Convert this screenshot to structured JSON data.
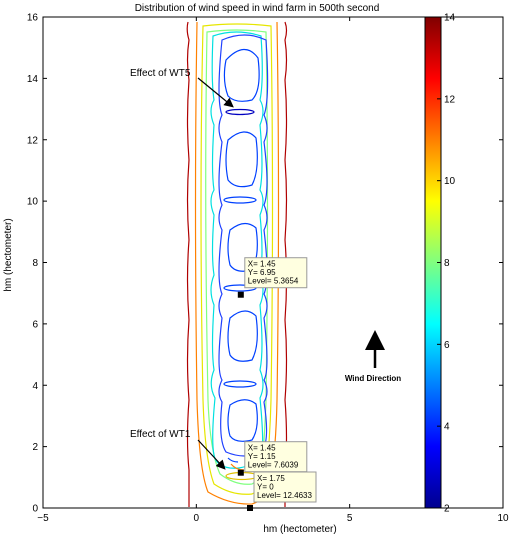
{
  "chart_data": {
    "type": "contour",
    "title": "Distribution of wind speed in wind farm in 500th second",
    "xlabel": "hm   (hectometer)",
    "ylabel": "hm   (hectometer)",
    "xlim": [
      -5,
      10
    ],
    "ylim": [
      0,
      16
    ],
    "x_ticks": [
      "−5",
      "0",
      "5",
      "10"
    ],
    "y_ticks": [
      "0",
      "2",
      "4",
      "6",
      "8",
      "10",
      "12",
      "14",
      "16"
    ],
    "colorbar": {
      "range": [
        2,
        14
      ],
      "ticks": [
        "2",
        "4",
        "6",
        "8",
        "10",
        "12",
        "14"
      ]
    },
    "turbine_markers": [
      {
        "x": 1.45,
        "y": 6.95,
        "level": 5.3654
      },
      {
        "x": 1.45,
        "y": 1.15,
        "level": 7.6039
      },
      {
        "x": 1.75,
        "y": 0,
        "level": 12.4633
      }
    ],
    "datatips": [
      {
        "line1": "X= 1.45",
        "line2": "Y= 6.95",
        "line3": "Level= 5.3654"
      },
      {
        "line1": "X= 1.45",
        "line2": "Y= 1.15",
        "line3": "Level= 7.6039"
      },
      {
        "line1": "X= 1.75",
        "line2": "Y= 0",
        "line3": "Level= 12.4633"
      }
    ],
    "annotations": {
      "wt5": "Effect of WT5",
      "wt1": "Effect of WT1",
      "wind_direction": "Wind Direction"
    },
    "grid": false
  }
}
